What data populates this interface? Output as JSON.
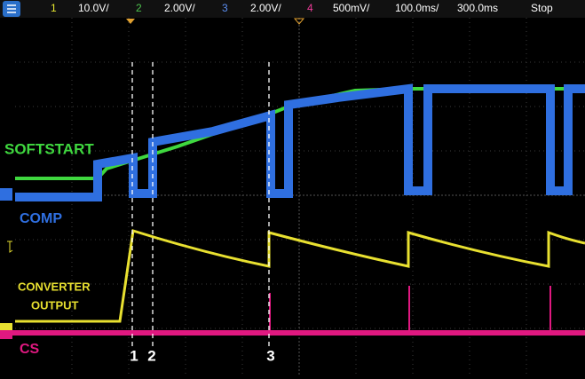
{
  "toolbar": {
    "channels": [
      {
        "number": "1",
        "scale": "10.0V/"
      },
      {
        "number": "2",
        "scale": "2.00V/"
      },
      {
        "number": "3",
        "scale": "2.00V/"
      },
      {
        "number": "4",
        "scale": "500mV/"
      }
    ],
    "timebase": "100.0ms/",
    "delay": "300.0ms",
    "status": "Stop"
  },
  "labels": {
    "softstart": "SOFTSTART",
    "comp": "COMP",
    "converter_output": [
      "CONVERTER",
      "OUTPUT"
    ],
    "cs": "CS"
  },
  "markers": [
    "1",
    "2",
    "3"
  ]
}
